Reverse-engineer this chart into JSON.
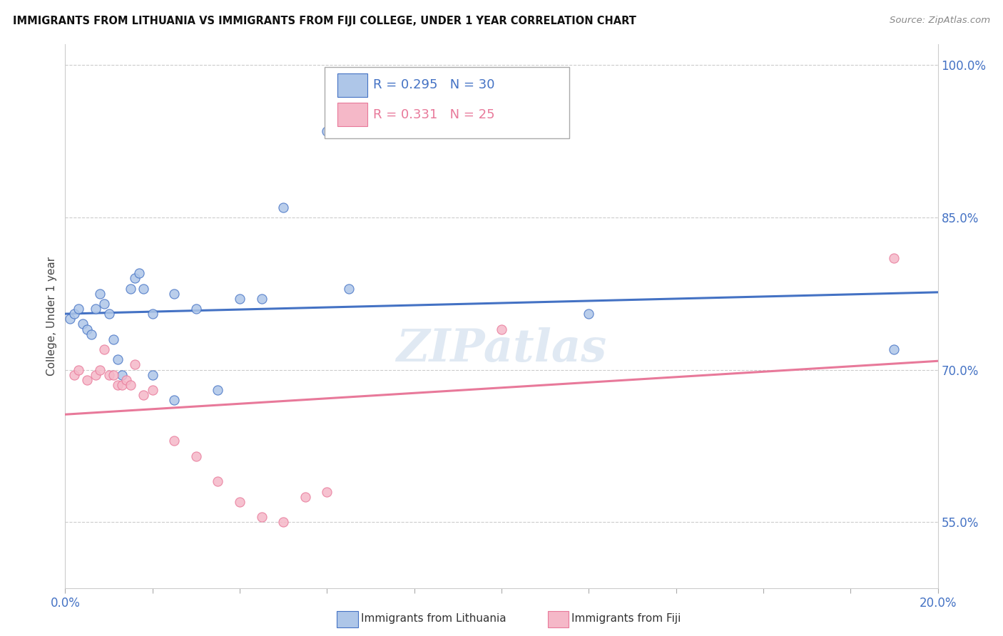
{
  "title": "IMMIGRANTS FROM LITHUANIA VS IMMIGRANTS FROM FIJI COLLEGE, UNDER 1 YEAR CORRELATION CHART",
  "source": "Source: ZipAtlas.com",
  "ylabel": "College, Under 1 year",
  "xlim": [
    0.0,
    0.2
  ],
  "ylim": [
    0.485,
    1.02
  ],
  "x_ticks": [
    0.0,
    0.02,
    0.04,
    0.06,
    0.08,
    0.1,
    0.12,
    0.14,
    0.16,
    0.18,
    0.2
  ],
  "y_ticks_right": [
    0.55,
    0.7,
    0.85,
    1.0
  ],
  "y_tick_labels_right": [
    "55.0%",
    "70.0%",
    "85.0%",
    "100.0%"
  ],
  "watermark": "ZIPatlas",
  "lithuania_color": "#aec6e8",
  "fiji_color": "#f5b8c8",
  "lithuania_line_color": "#4472c4",
  "fiji_line_color": "#e8799a",
  "tick_color": "#4472c4",
  "R_lithuania": 0.295,
  "N_lithuania": 30,
  "R_fiji": 0.331,
  "N_fiji": 25,
  "lithuania_x": [
    0.001,
    0.002,
    0.003,
    0.004,
    0.005,
    0.006,
    0.007,
    0.008,
    0.009,
    0.01,
    0.011,
    0.012,
    0.013,
    0.015,
    0.016,
    0.017,
    0.018,
    0.02,
    0.025,
    0.03,
    0.035,
    0.04,
    0.045,
    0.05,
    0.06,
    0.065,
    0.02,
    0.025,
    0.12,
    0.19
  ],
  "lithuania_y": [
    0.75,
    0.755,
    0.76,
    0.745,
    0.74,
    0.735,
    0.76,
    0.775,
    0.765,
    0.755,
    0.73,
    0.71,
    0.695,
    0.78,
    0.79,
    0.795,
    0.78,
    0.755,
    0.775,
    0.76,
    0.68,
    0.77,
    0.77,
    0.86,
    0.935,
    0.78,
    0.695,
    0.67,
    0.755,
    0.72
  ],
  "fiji_x": [
    0.002,
    0.003,
    0.005,
    0.007,
    0.008,
    0.009,
    0.01,
    0.011,
    0.012,
    0.013,
    0.014,
    0.015,
    0.016,
    0.018,
    0.02,
    0.025,
    0.03,
    0.035,
    0.04,
    0.045,
    0.05,
    0.055,
    0.06,
    0.1,
    0.19
  ],
  "fiji_y": [
    0.695,
    0.7,
    0.69,
    0.695,
    0.7,
    0.72,
    0.695,
    0.695,
    0.685,
    0.685,
    0.69,
    0.685,
    0.705,
    0.675,
    0.68,
    0.63,
    0.615,
    0.59,
    0.57,
    0.555,
    0.55,
    0.575,
    0.58,
    0.74,
    0.81
  ],
  "background_color": "#ffffff",
  "grid_color": "#cccccc"
}
